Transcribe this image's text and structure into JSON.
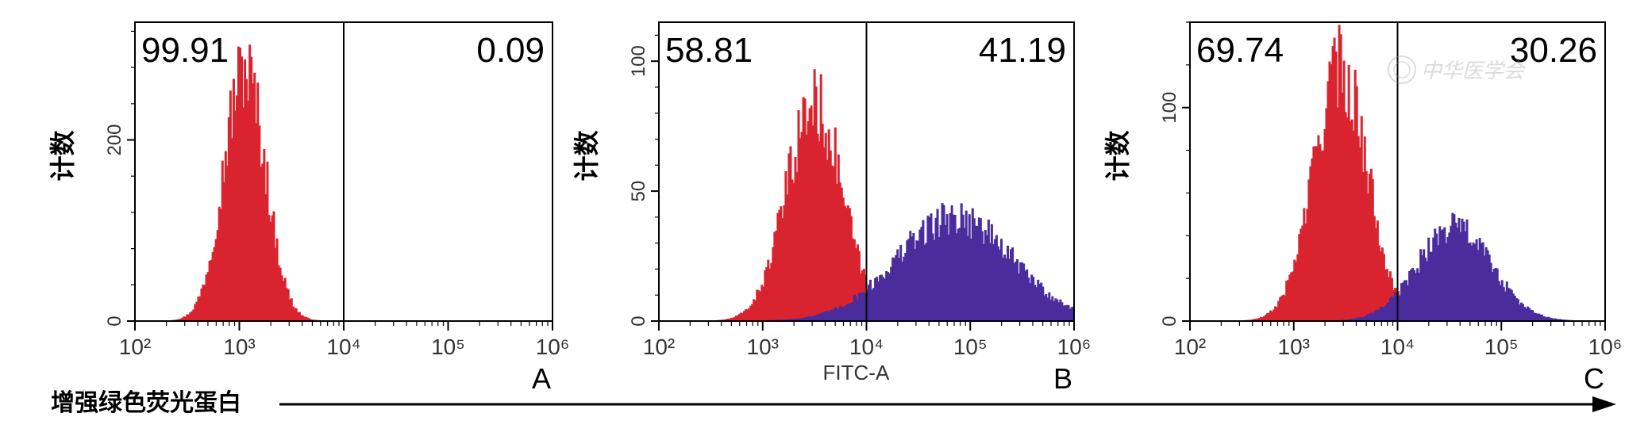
{
  "figure": {
    "bottom_label": "增强绿色荧光蛋白",
    "watermark": "中华医学会",
    "colors": {
      "gfp_negative": "#d9242f",
      "gfp_positive": "#4a2c9c",
      "axis": "#000000"
    }
  },
  "chart_data": [
    {
      "type": "histogram",
      "panel_label": "A",
      "ylabel": "计数",
      "xlabel": "",
      "x_scale": "log",
      "xlim": [
        100,
        1000000
      ],
      "x_ticks": [
        "10²",
        "10³",
        "10⁴",
        "10⁵",
        "10⁶"
      ],
      "ylim": [
        0,
        330
      ],
      "y_ticks": [
        0,
        200
      ],
      "y_tick_labels": [
        "0",
        "200"
      ],
      "gate": 10000,
      "gate_percentages": {
        "left": "99.91",
        "right": "0.09"
      },
      "series": [
        {
          "color": "#d9242f",
          "peaks": [
            {
              "center_log10": 3.05,
              "sigma": 0.2,
              "height": 278
            }
          ]
        }
      ],
      "grid": false
    },
    {
      "type": "histogram",
      "panel_label": "B",
      "ylabel": "计数",
      "xlabel": "FITC-A",
      "x_scale": "log",
      "xlim": [
        100,
        1000000
      ],
      "x_ticks": [
        "10²",
        "10³",
        "10⁴",
        "10⁵",
        "10⁶"
      ],
      "ylim": [
        0,
        115
      ],
      "y_ticks": [
        0,
        50,
        100
      ],
      "y_tick_labels": [
        "0",
        "50",
        "100"
      ],
      "gate": 10000,
      "gate_percentages": {
        "left": "58.81",
        "right": "41.19"
      },
      "series": [
        {
          "color": "#d9242f",
          "peaks": [
            {
              "center_log10": 3.5,
              "sigma": 0.27,
              "height": 83
            }
          ]
        },
        {
          "color": "#4a2c9c",
          "peaks": [
            {
              "center_log10": 4.85,
              "sigma": 0.55,
              "height": 40
            }
          ]
        }
      ],
      "grid": false
    },
    {
      "type": "histogram",
      "panel_label": "C",
      "ylabel": "计数",
      "xlabel": "",
      "x_scale": "log",
      "xlim": [
        100,
        1000000
      ],
      "x_ticks": [
        "10²",
        "10³",
        "10⁴",
        "10⁵",
        "10⁶"
      ],
      "ylim": [
        0,
        140
      ],
      "y_ticks": [
        0,
        100
      ],
      "y_tick_labels": [
        "0",
        "100"
      ],
      "gate": 10000,
      "gate_percentages": {
        "left": "69.74",
        "right": "30.26"
      },
      "series": [
        {
          "color": "#d9242f",
          "peaks": [
            {
              "center_log10": 3.45,
              "sigma": 0.26,
              "height": 118
            }
          ]
        },
        {
          "color": "#4a2c9c",
          "peaks": [
            {
              "center_log10": 4.55,
              "sigma": 0.35,
              "height": 44
            }
          ]
        }
      ],
      "grid": false
    }
  ]
}
